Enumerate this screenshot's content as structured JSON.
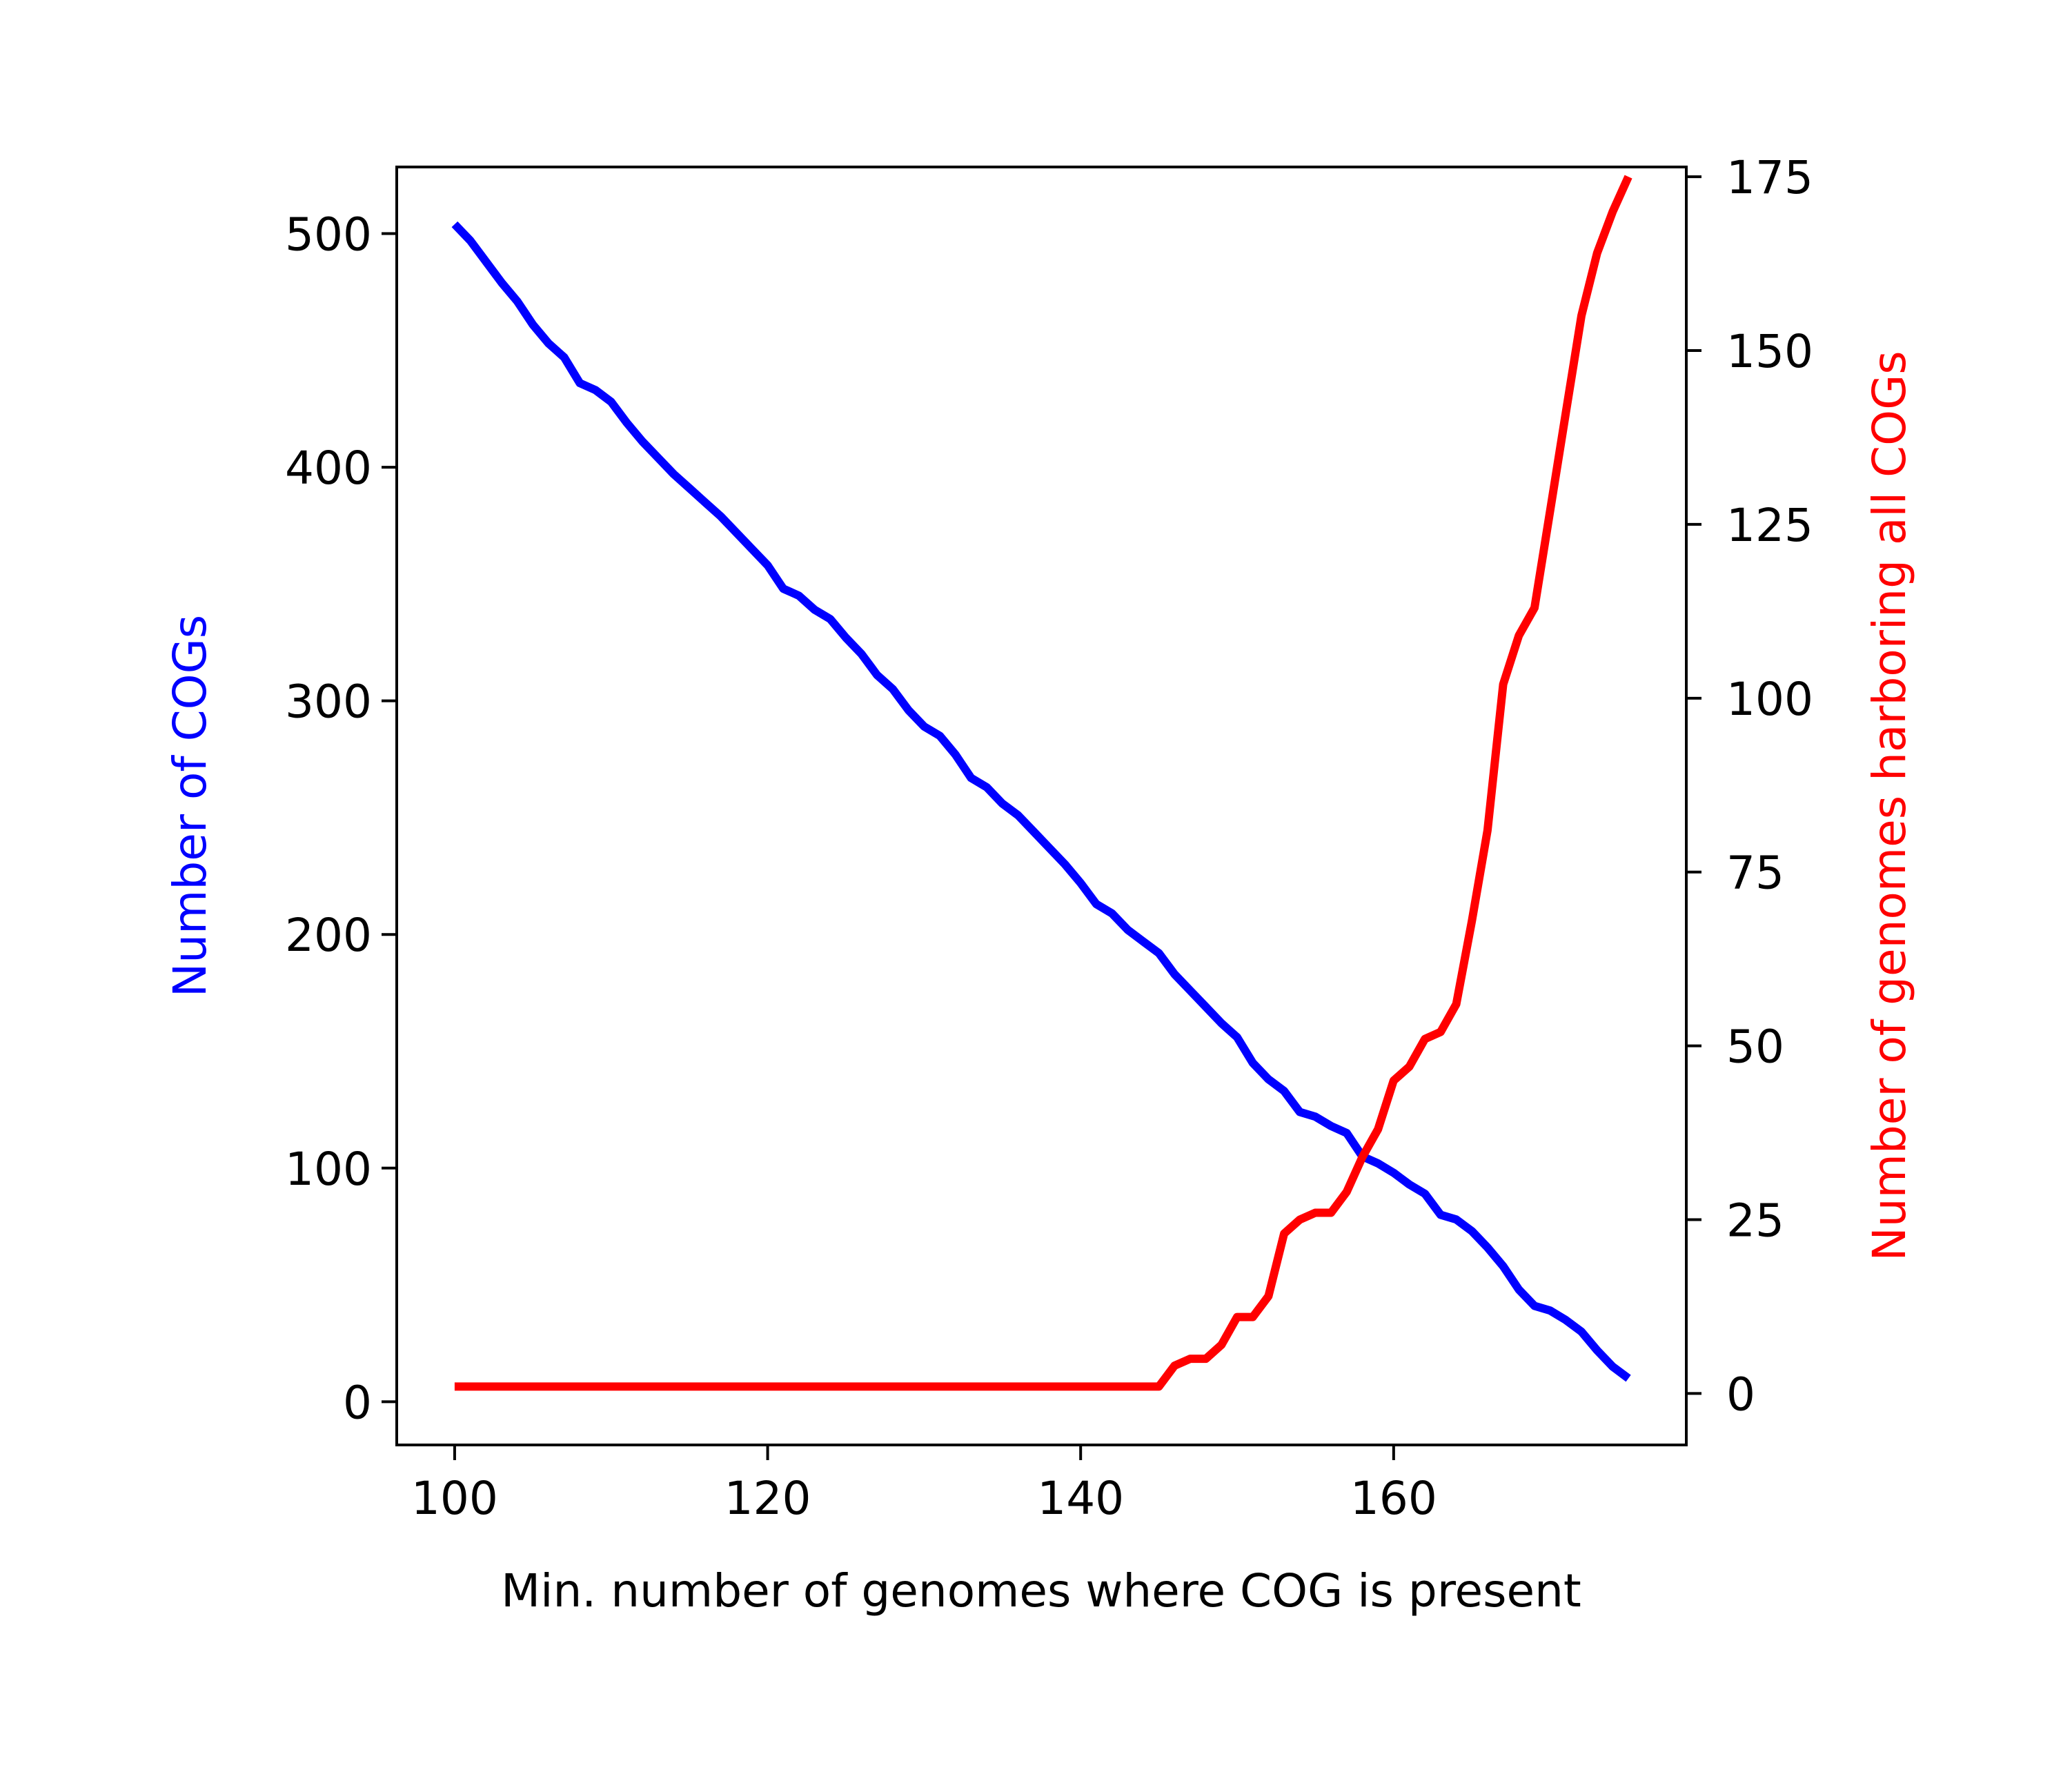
{
  "chart_data": {
    "type": "line",
    "title": "",
    "xlabel": "Min. number of genomes where COG is present",
    "ylabel_left": "Number of COGs",
    "ylabel_right": "Number of genomes harboring all COGs",
    "xlim": [
      96.3,
      178.7
    ],
    "ylim_left": [
      -18.5,
      528.5
    ],
    "ylim_right": [
      -7.4,
      176.4
    ],
    "x_ticks": [
      100,
      120,
      140,
      160
    ],
    "y_ticks_left": [
      0,
      100,
      200,
      300,
      400,
      500
    ],
    "y_ticks_right": [
      0,
      25,
      50,
      75,
      100,
      125,
      150,
      175
    ],
    "grid": false,
    "legend": "none",
    "x": [
      100,
      101,
      102,
      103,
      104,
      105,
      106,
      107,
      108,
      109,
      110,
      111,
      112,
      113,
      114,
      115,
      116,
      117,
      118,
      119,
      120,
      121,
      122,
      123,
      124,
      125,
      126,
      127,
      128,
      129,
      130,
      131,
      132,
      133,
      134,
      135,
      136,
      137,
      138,
      139,
      140,
      141,
      142,
      143,
      144,
      145,
      146,
      147,
      148,
      149,
      150,
      151,
      152,
      153,
      154,
      155,
      156,
      157,
      158,
      159,
      160,
      161,
      162,
      163,
      164,
      165,
      166,
      167,
      168,
      169,
      170,
      171,
      172,
      173,
      174,
      175
    ],
    "series": [
      {
        "name": "Number of COGs",
        "axis": "left",
        "color": "#0000ff",
        "values": [
          504,
          497,
          488,
          479,
          471,
          461,
          453,
          447,
          436,
          433,
          428,
          419,
          411,
          404,
          397,
          391,
          385,
          379,
          372,
          365,
          358,
          348,
          345,
          339,
          335,
          327,
          320,
          311,
          305,
          296,
          289,
          285,
          277,
          267,
          263,
          256,
          251,
          244,
          237,
          230,
          222,
          213,
          209,
          202,
          197,
          192,
          183,
          176,
          169,
          162,
          156,
          145,
          138,
          133,
          124,
          122,
          118,
          115,
          105,
          102,
          98,
          93,
          89,
          80,
          78,
          73,
          66,
          58,
          48,
          41,
          39,
          35,
          30,
          22,
          15,
          10
        ]
      },
      {
        "name": "Number of genomes harboring all COGs",
        "axis": "right",
        "color": "#ff0000",
        "values": [
          1,
          1,
          1,
          1,
          1,
          1,
          1,
          1,
          1,
          1,
          1,
          1,
          1,
          1,
          1,
          1,
          1,
          1,
          1,
          1,
          1,
          1,
          1,
          1,
          1,
          1,
          1,
          1,
          1,
          1,
          1,
          1,
          1,
          1,
          1,
          1,
          1,
          1,
          1,
          1,
          1,
          1,
          1,
          1,
          1,
          1,
          4,
          5,
          5,
          7,
          11,
          11,
          14,
          23,
          25,
          26,
          26,
          29,
          34,
          38,
          45,
          47,
          51,
          52,
          56,
          68,
          81,
          102,
          109,
          113,
          127,
          141,
          155,
          164,
          170,
          175
        ]
      }
    ]
  }
}
